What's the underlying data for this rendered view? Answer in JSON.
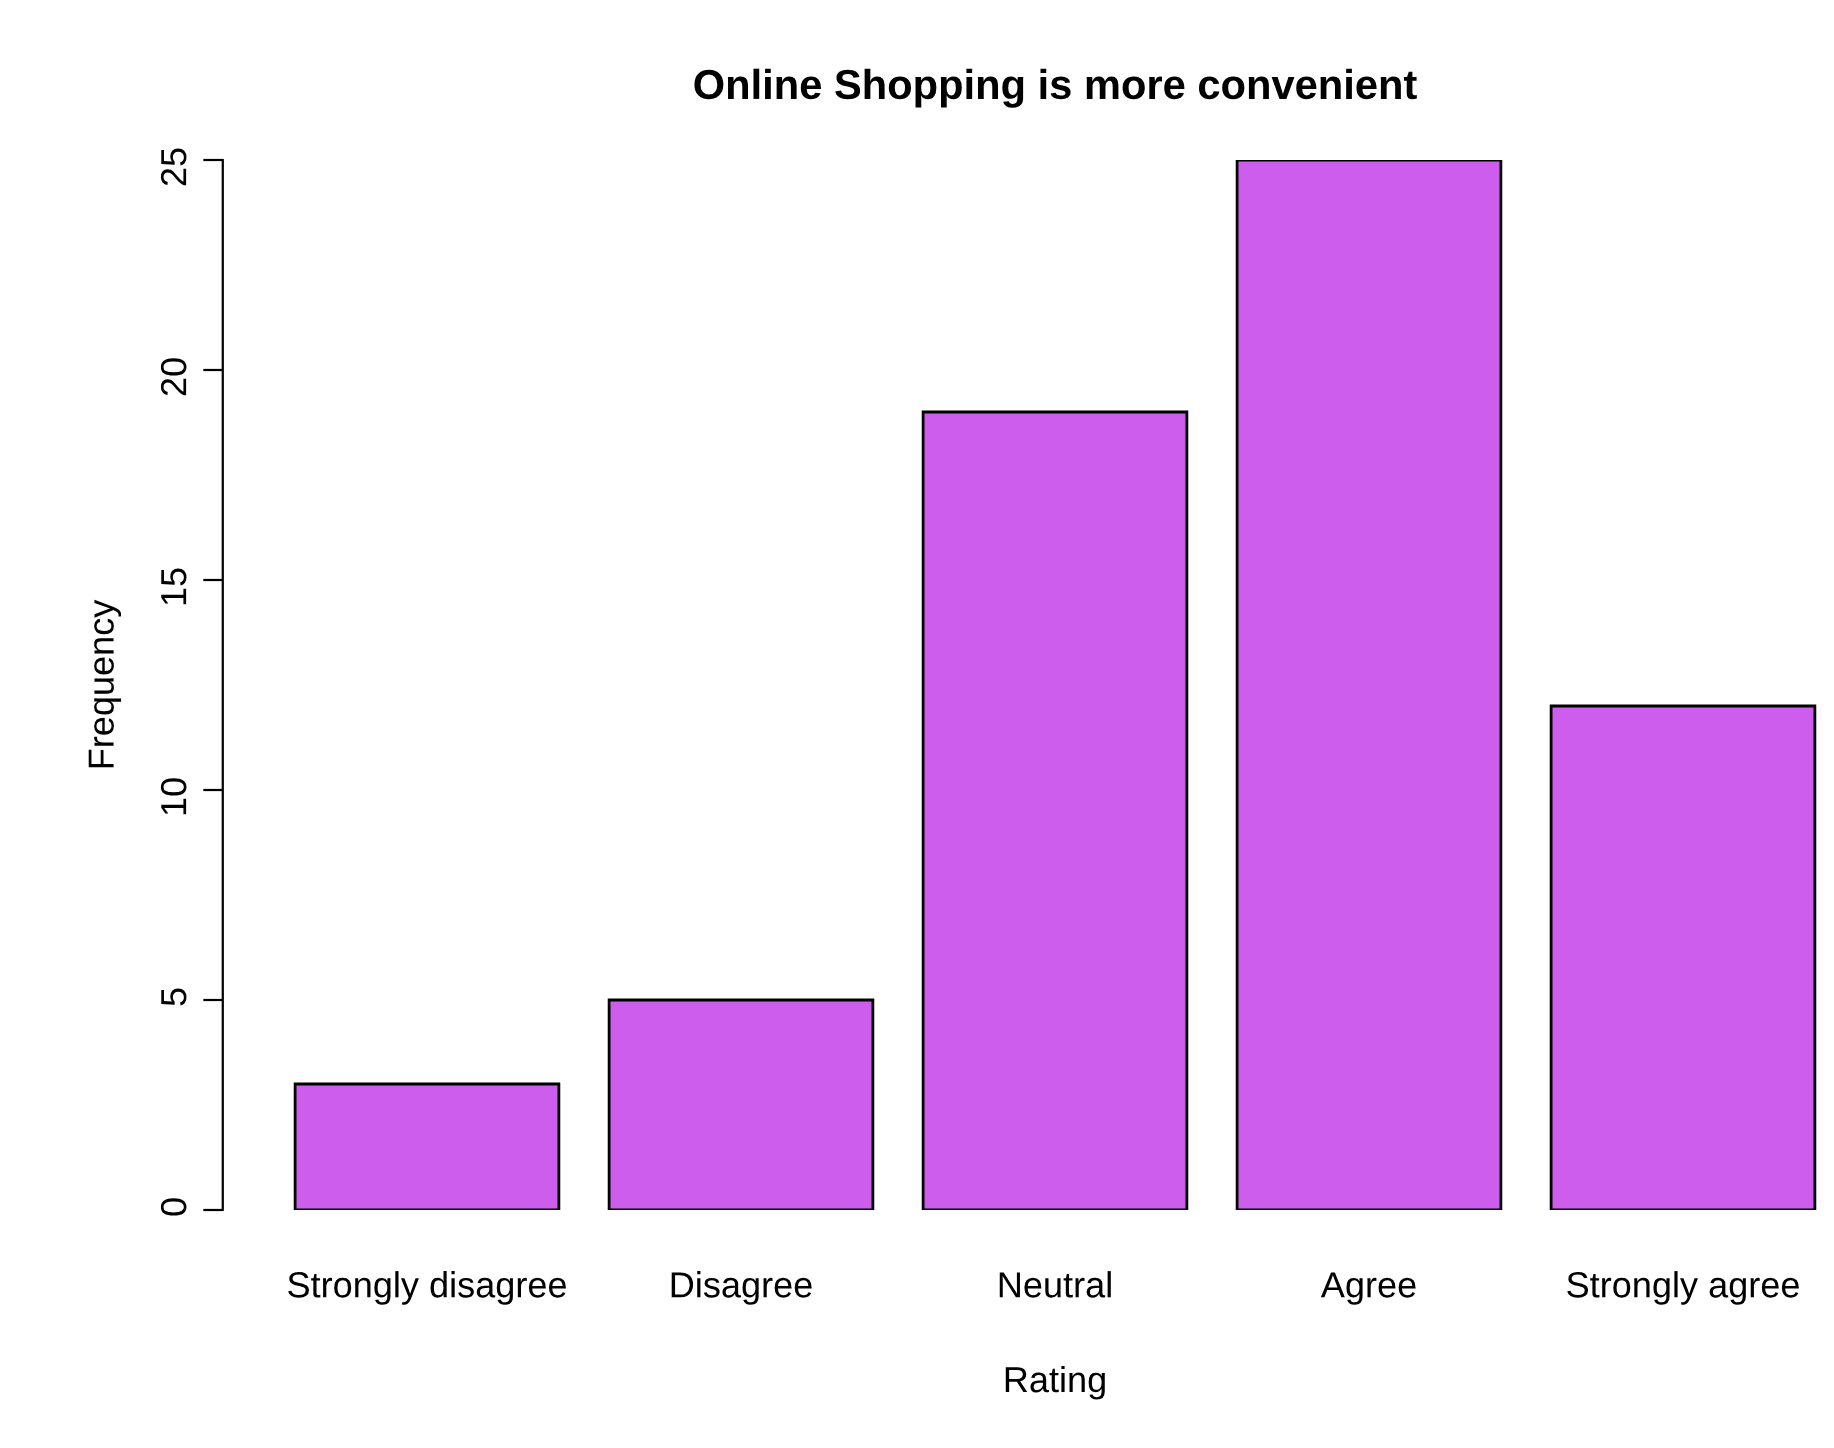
{
  "chart_data": {
    "type": "bar",
    "title": "Online Shopping is more convenient",
    "xlabel": "Rating",
    "ylabel": "Frequency",
    "categories": [
      "Strongly disagree",
      "Disagree",
      "Neutral",
      "Agree",
      "Strongly agree"
    ],
    "values": [
      3,
      5,
      19,
      25,
      12
    ],
    "color": "#cd5ded",
    "ylim": [
      0,
      25
    ],
    "yticks": [
      0,
      5,
      10,
      15,
      20,
      25
    ],
    "grid": false,
    "legend": false
  }
}
